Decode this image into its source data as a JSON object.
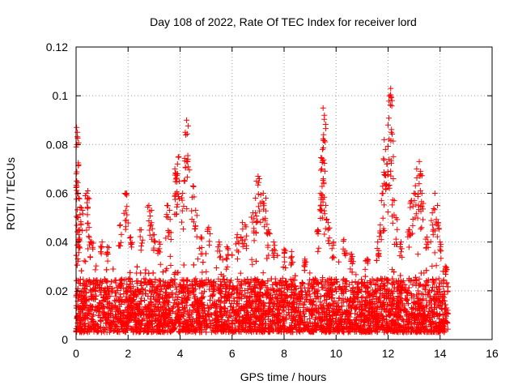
{
  "chart_data": {
    "type": "scatter",
    "title": "Day 108 of 2022, Rate Of TEC Index for receiver lord",
    "xlabel": "GPS time / hours",
    "ylabel": "ROTI / TECUs",
    "xlim": [
      0,
      16
    ],
    "ylim": [
      0,
      0.12
    ],
    "x_ticks": [
      0,
      2,
      4,
      6,
      8,
      10,
      12,
      14,
      16
    ],
    "y_ticks": [
      0,
      0.02,
      0.04,
      0.06,
      0.08,
      0.1,
      0.12
    ],
    "x_tick_labels": [
      "0",
      "2",
      "4",
      "6",
      "8",
      "10",
      "12",
      "14",
      "16"
    ],
    "y_tick_labels": [
      "0",
      "0.02",
      "0.04",
      "0.06",
      "0.08",
      "0.1",
      "0.12"
    ],
    "grid": true,
    "marker": "+",
    "color": "#ff0000",
    "x_data_range": [
      0,
      14.3
    ],
    "baseline_band": [
      0.003,
      0.025
    ],
    "series": [
      {
        "values": [
          {
            "x": 0.02,
            "y": 0.087
          },
          {
            "x": 0.05,
            "y": 0.085
          },
          {
            "x": 0.03,
            "y": 0.08
          },
          {
            "x": 0.01,
            "y": 0.068
          },
          {
            "x": 0.1,
            "y": 0.058
          },
          {
            "x": 0.08,
            "y": 0.05
          },
          {
            "x": 0.2,
            "y": 0.054
          },
          {
            "x": 0.15,
            "y": 0.045
          },
          {
            "x": 0.12,
            "y": 0.038
          },
          {
            "x": 0.45,
            "y": 0.061
          },
          {
            "x": 0.4,
            "y": 0.06
          },
          {
            "x": 0.5,
            "y": 0.046
          },
          {
            "x": 0.6,
            "y": 0.04
          },
          {
            "x": 1.0,
            "y": 0.04
          },
          {
            "x": 1.2,
            "y": 0.038
          },
          {
            "x": 1.7,
            "y": 0.047
          },
          {
            "x": 1.9,
            "y": 0.06
          },
          {
            "x": 1.95,
            "y": 0.06
          },
          {
            "x": 2.1,
            "y": 0.042
          },
          {
            "x": 2.5,
            "y": 0.045
          },
          {
            "x": 2.8,
            "y": 0.055
          },
          {
            "x": 2.9,
            "y": 0.053
          },
          {
            "x": 3.0,
            "y": 0.043
          },
          {
            "x": 3.2,
            "y": 0.04
          },
          {
            "x": 3.5,
            "y": 0.055
          },
          {
            "x": 3.6,
            "y": 0.053
          },
          {
            "x": 3.8,
            "y": 0.07
          },
          {
            "x": 3.85,
            "y": 0.068
          },
          {
            "x": 3.9,
            "y": 0.072
          },
          {
            "x": 3.95,
            "y": 0.075
          },
          {
            "x": 4.1,
            "y": 0.06
          },
          {
            "x": 4.2,
            "y": 0.085
          },
          {
            "x": 4.25,
            "y": 0.09
          },
          {
            "x": 4.3,
            "y": 0.074
          },
          {
            "x": 4.5,
            "y": 0.063
          },
          {
            "x": 4.6,
            "y": 0.053
          },
          {
            "x": 4.8,
            "y": 0.042
          },
          {
            "x": 5.1,
            "y": 0.046
          },
          {
            "x": 5.5,
            "y": 0.04
          },
          {
            "x": 5.8,
            "y": 0.038
          },
          {
            "x": 6.2,
            "y": 0.043
          },
          {
            "x": 6.4,
            "y": 0.048
          },
          {
            "x": 6.5,
            "y": 0.047
          },
          {
            "x": 6.8,
            "y": 0.052
          },
          {
            "x": 6.9,
            "y": 0.058
          },
          {
            "x": 7.0,
            "y": 0.067
          },
          {
            "x": 7.05,
            "y": 0.066
          },
          {
            "x": 7.2,
            "y": 0.06
          },
          {
            "x": 7.3,
            "y": 0.058
          },
          {
            "x": 7.4,
            "y": 0.045
          },
          {
            "x": 7.6,
            "y": 0.04
          },
          {
            "x": 8.0,
            "y": 0.037
          },
          {
            "x": 8.3,
            "y": 0.034
          },
          {
            "x": 8.8,
            "y": 0.033
          },
          {
            "x": 9.3,
            "y": 0.045
          },
          {
            "x": 9.4,
            "y": 0.06
          },
          {
            "x": 9.45,
            "y": 0.07
          },
          {
            "x": 9.5,
            "y": 0.095
          },
          {
            "x": 9.55,
            "y": 0.092
          },
          {
            "x": 9.52,
            "y": 0.084
          },
          {
            "x": 9.48,
            "y": 0.078
          },
          {
            "x": 9.6,
            "y": 0.055
          },
          {
            "x": 9.7,
            "y": 0.048
          },
          {
            "x": 9.9,
            "y": 0.04
          },
          {
            "x": 10.3,
            "y": 0.041
          },
          {
            "x": 10.6,
            "y": 0.035
          },
          {
            "x": 11.2,
            "y": 0.033
          },
          {
            "x": 11.6,
            "y": 0.04
          },
          {
            "x": 11.7,
            "y": 0.047
          },
          {
            "x": 11.8,
            "y": 0.06
          },
          {
            "x": 11.85,
            "y": 0.082
          },
          {
            "x": 11.9,
            "y": 0.078
          },
          {
            "x": 11.95,
            "y": 0.072
          },
          {
            "x": 12.0,
            "y": 0.088
          },
          {
            "x": 12.05,
            "y": 0.1
          },
          {
            "x": 12.1,
            "y": 0.103
          },
          {
            "x": 12.15,
            "y": 0.098
          },
          {
            "x": 12.2,
            "y": 0.066
          },
          {
            "x": 12.3,
            "y": 0.05
          },
          {
            "x": 12.5,
            "y": 0.04
          },
          {
            "x": 12.8,
            "y": 0.045
          },
          {
            "x": 12.9,
            "y": 0.057
          },
          {
            "x": 13.0,
            "y": 0.06
          },
          {
            "x": 13.1,
            "y": 0.07
          },
          {
            "x": 13.2,
            "y": 0.073
          },
          {
            "x": 13.25,
            "y": 0.069
          },
          {
            "x": 13.3,
            "y": 0.06
          },
          {
            "x": 13.5,
            "y": 0.042
          },
          {
            "x": 13.7,
            "y": 0.052
          },
          {
            "x": 13.8,
            "y": 0.06
          },
          {
            "x": 13.9,
            "y": 0.055
          },
          {
            "x": 14.0,
            "y": 0.04
          },
          {
            "x": 14.2,
            "y": 0.03
          }
        ]
      }
    ]
  }
}
